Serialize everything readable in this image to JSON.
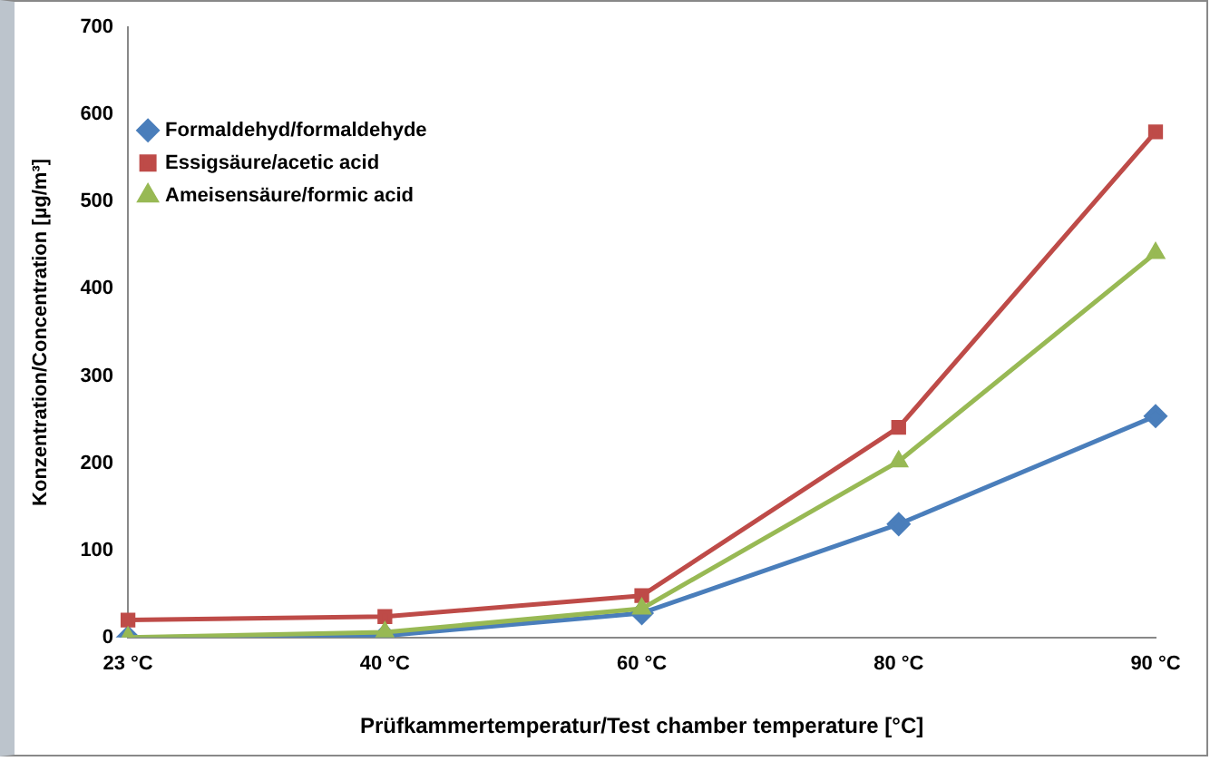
{
  "chart_data": {
    "type": "line",
    "xlabel": "Prüfkammertemperatur/Test chamber temperature [°C]",
    "ylabel": "Konzentration/Concentration [µg/m³]",
    "categories": [
      "23 °C",
      "40 °C",
      "60 °C",
      "80 °C",
      "90 °C"
    ],
    "series": [
      {
        "name": "Formaldehyd/formaldehyde",
        "color": "#4a7ebb",
        "marker": "diamond",
        "values": [
          0,
          2,
          28,
          130,
          254
        ]
      },
      {
        "name": "Essigsäure/acetic acid",
        "color": "#be4b48",
        "marker": "square",
        "values": [
          20,
          24,
          48,
          241,
          580
        ]
      },
      {
        "name": "Ameisensäure/formic acid",
        "color": "#98b954",
        "marker": "triangle",
        "values": [
          0,
          6,
          33,
          202,
          441
        ]
      }
    ],
    "ylim": [
      0,
      700
    ],
    "yticks": [
      0,
      100,
      200,
      300,
      400,
      500,
      600,
      700
    ],
    "grid": false,
    "legend": "top left",
    "line_style": "solid"
  }
}
